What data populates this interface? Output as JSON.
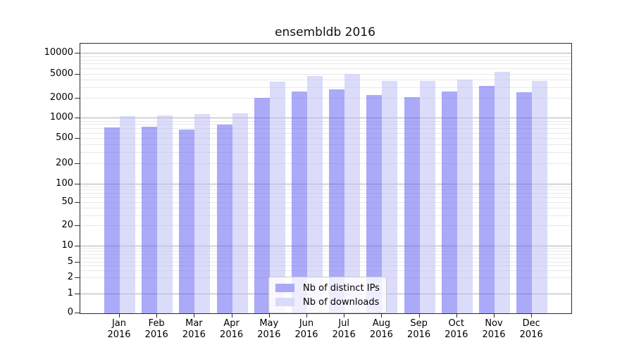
{
  "chart_data": {
    "type": "bar",
    "title": "ensembldb 2016",
    "xlabel": "",
    "ylabel": "",
    "year": "2016",
    "categories": [
      "Jan",
      "Feb",
      "Mar",
      "Apr",
      "May",
      "Jun",
      "Jul",
      "Aug",
      "Sep",
      "Oct",
      "Nov",
      "Dec"
    ],
    "series": [
      {
        "name": "Nb of distinct IPs",
        "values": [
          730,
          750,
          680,
          800,
          2060,
          2600,
          2820,
          2270,
          2110,
          2600,
          3260,
          2560
        ],
        "fill": "rgba(100,100,242,0.55)",
        "legend_color": "#a9a9f7"
      },
      {
        "name": "Nb of downloads",
        "values": [
          1090,
          1100,
          1160,
          1180,
          3840,
          4650,
          5140,
          3930,
          3930,
          4110,
          5500,
          3880
        ],
        "fill": "rgba(190,190,246,0.55)",
        "legend_color": "#dadaf9"
      }
    ],
    "yaxis": {
      "scale": "symlog",
      "ylim": [
        0,
        14000
      ],
      "grid": true,
      "ticks": [
        {
          "label": "0",
          "value": 0,
          "f": 0.0
        },
        {
          "label": "1",
          "value": 1,
          "f": 0.07
        },
        {
          "label": "2",
          "value": 2,
          "f": 0.131
        },
        {
          "label": "5",
          "value": 5,
          "f": 0.188
        },
        {
          "label": "10",
          "value": 10,
          "f": 0.249
        },
        {
          "label": "20",
          "value": 20,
          "f": 0.323
        },
        {
          "label": "50",
          "value": 50,
          "f": 0.41
        },
        {
          "label": "100",
          "value": 100,
          "f": 0.479
        },
        {
          "label": "200",
          "value": 200,
          "f": 0.553
        },
        {
          "label": "500",
          "value": 500,
          "f": 0.647
        },
        {
          "label": "1000",
          "value": 1000,
          "f": 0.723
        },
        {
          "label": "2000",
          "value": 2000,
          "f": 0.796
        },
        {
          "label": "5000",
          "value": 5000,
          "f": 0.886
        },
        {
          "label": "10000",
          "value": 10000,
          "f": 0.963
        }
      ],
      "major_grid_values": [
        1,
        10,
        100,
        1000,
        10000
      ],
      "minor_decades": [
        1,
        10,
        100,
        1000
      ],
      "minor_multiples": [
        2,
        3,
        4,
        5,
        6,
        7,
        8,
        9
      ]
    },
    "legend": {
      "position": "lower center"
    }
  },
  "colors": {
    "major_grid": "#b0b0b0",
    "minor_grid": "#e8e8e8",
    "spine": "#2b2b2b",
    "text": "#000000",
    "background": "#ffffff"
  }
}
